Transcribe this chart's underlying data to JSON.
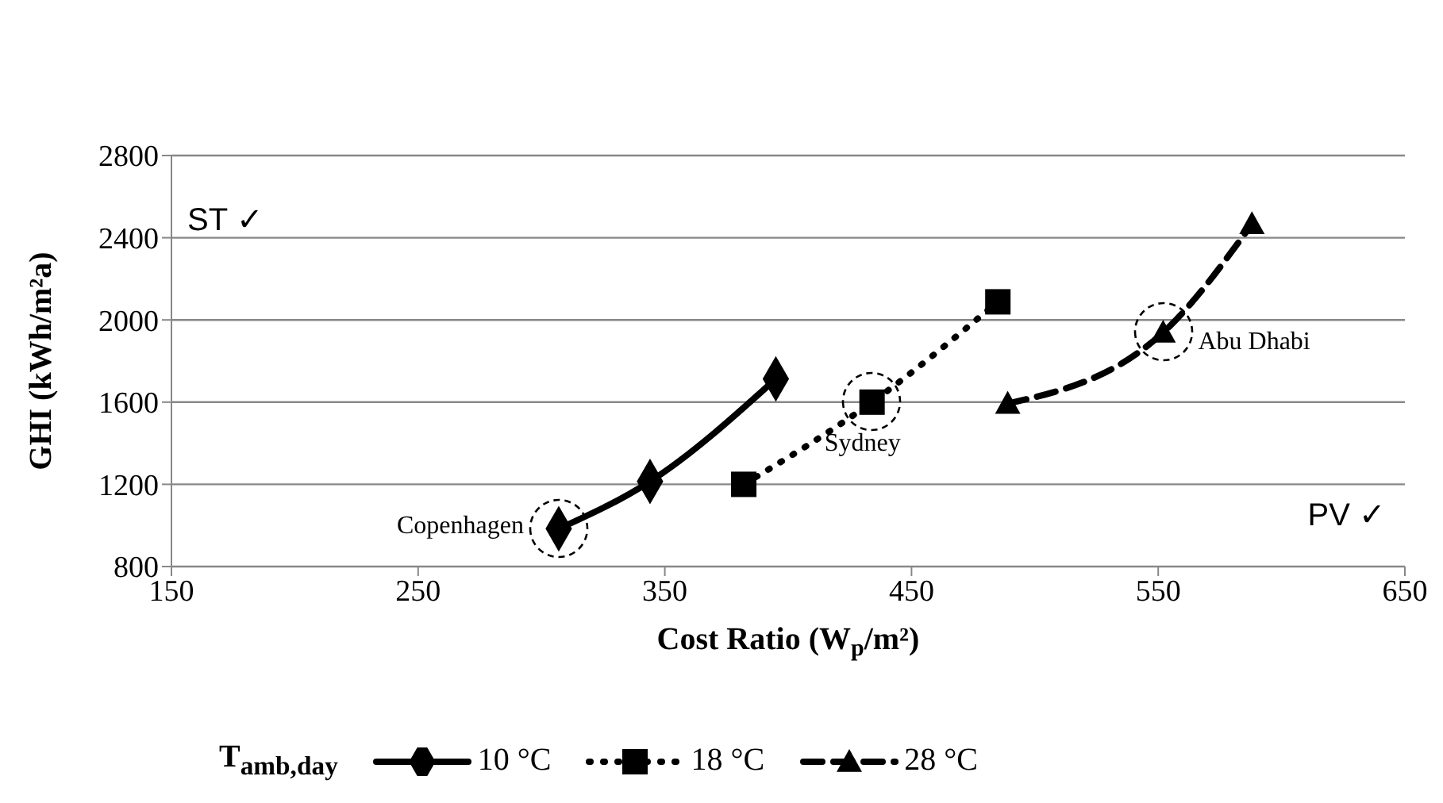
{
  "chart_data": {
    "type": "line",
    "xlabel": "Cost Ratio (W$_{p}$/m²)",
    "ylabel": "GHI (kWh/m²a)",
    "legend_title": "T$_{amb,day}$",
    "series": [
      {
        "name": "10 °C",
        "color": "#000000",
        "marker": "diamond",
        "line_style": "solid",
        "x": [
          307,
          344,
          395
        ],
        "values": [
          984,
          1214,
          1713
        ]
      },
      {
        "name": "18 °C",
        "color": "#000000",
        "marker": "square",
        "line_style": "dotted",
        "x": [
          382,
          434,
          485
        ],
        "values": [
          1200,
          1600,
          2088
        ]
      },
      {
        "name": "28 °C",
        "color": "#000000",
        "marker": "triangle",
        "line_style": "dashed",
        "x": [
          489,
          552,
          588
        ],
        "values": [
          1593,
          1939,
          2467
        ]
      }
    ],
    "annotations": [
      {
        "text": "Copenhagen",
        "x": 307,
        "y": 984
      },
      {
        "text": "Sydney",
        "x": 434,
        "y": 1600
      },
      {
        "text": "Abu Dhabi",
        "x": 552,
        "y": 1939
      },
      "ST ✓",
      "PV ✓"
    ],
    "xlim": [
      150,
      650
    ],
    "xticks": [
      150,
      250,
      350,
      450,
      550,
      650
    ],
    "ylim": [
      800,
      2800
    ],
    "yticks": [
      800,
      1200,
      1600,
      2000,
      2400,
      2800
    ],
    "grid": "y",
    "legend": "bottom"
  }
}
